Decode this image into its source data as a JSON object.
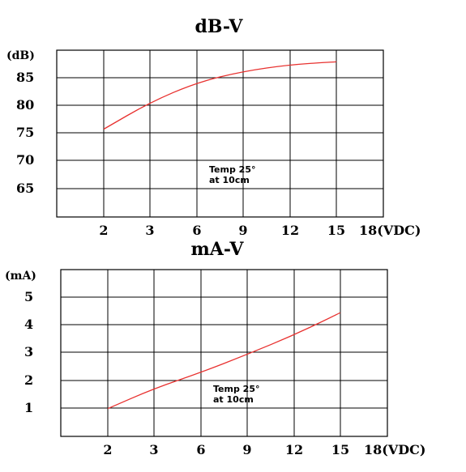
{
  "chart_data": [
    {
      "type": "line",
      "title": "dB-V",
      "ylabel": "(dB)",
      "xlabel": "18(VDC)",
      "x_ticks": [
        "2",
        "3",
        "6",
        "9",
        "12",
        "15"
      ],
      "y_ticks": [
        "85",
        "80",
        "75",
        "70",
        "65"
      ],
      "ylim": [
        60,
        90
      ],
      "grid": true,
      "annotation": [
        "Temp 25°",
        "at 10cm"
      ],
      "line_color": "#e8312f",
      "series": [
        {
          "x": [
            2,
            3,
            6,
            9,
            12,
            15
          ],
          "y": [
            75.8,
            80.6,
            84.2,
            86.2,
            87.4,
            87.9
          ]
        }
      ]
    },
    {
      "type": "line",
      "title": "mA-V",
      "ylabel": "(mA)",
      "xlabel": "18(VDC)",
      "x_ticks": [
        "2",
        "3",
        "6",
        "9",
        "12",
        "15"
      ],
      "y_ticks": [
        "5",
        "4",
        "3",
        "2",
        "1"
      ],
      "ylim": [
        0,
        6
      ],
      "grid": true,
      "annotation": [
        "Temp 25°",
        "at 10cm"
      ],
      "line_color": "#e8312f",
      "series": [
        {
          "x": [
            2,
            3,
            6,
            9,
            12,
            15
          ],
          "y": [
            1.0,
            1.72,
            2.3,
            2.95,
            3.65,
            4.45
          ]
        }
      ]
    }
  ]
}
